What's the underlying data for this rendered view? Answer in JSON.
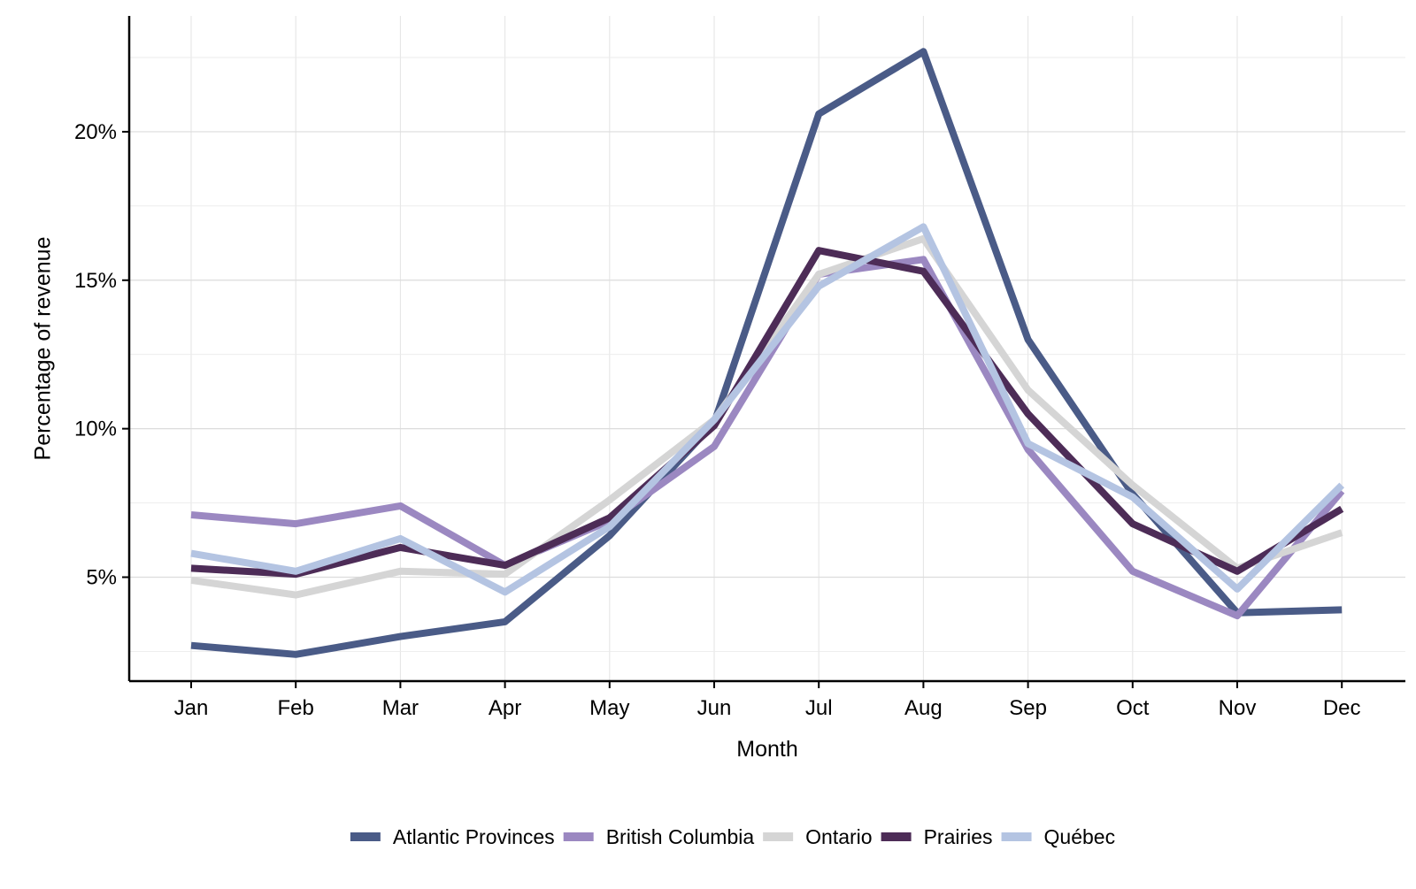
{
  "chart_data": {
    "type": "line",
    "title": "",
    "xlabel": "Month",
    "ylabel": "Percentage of revenue",
    "categories": [
      "Jan",
      "Feb",
      "Mar",
      "Apr",
      "May",
      "Jun",
      "Jul",
      "Aug",
      "Sep",
      "Oct",
      "Nov",
      "Dec"
    ],
    "ylim": [
      1.5,
      23.9
    ],
    "yticks": [
      5,
      10,
      15,
      20
    ],
    "ytick_labels": [
      "5%",
      "10%",
      "15%",
      "20%"
    ],
    "grid": true,
    "legend_position": "bottom",
    "series": [
      {
        "name": "Atlantic Provinces",
        "color": "#4a5b87",
        "values": [
          2.7,
          2.4,
          3.0,
          3.5,
          6.4,
          10.2,
          20.6,
          22.7,
          13.0,
          7.8,
          3.8,
          3.9
        ]
      },
      {
        "name": "British Columbia",
        "color": "#9b88c1",
        "values": [
          7.1,
          6.8,
          7.4,
          5.4,
          6.9,
          9.4,
          15.2,
          15.7,
          9.3,
          5.2,
          3.7,
          7.9
        ]
      },
      {
        "name": "Ontario",
        "color": "#d5d5d5",
        "values": [
          4.9,
          4.4,
          5.2,
          5.1,
          7.6,
          10.3,
          15.2,
          16.4,
          11.3,
          8.1,
          5.3,
          6.5
        ]
      },
      {
        "name": "Prairies",
        "color": "#4d2c57",
        "values": [
          5.3,
          5.1,
          6.0,
          5.4,
          7.0,
          10.1,
          16.0,
          15.3,
          10.5,
          6.8,
          5.2,
          7.3
        ]
      },
      {
        "name": "Québec",
        "color": "#b4c4e2",
        "values": [
          5.8,
          5.2,
          6.3,
          4.5,
          6.7,
          10.3,
          14.8,
          16.8,
          9.5,
          7.7,
          4.6,
          8.1
        ]
      }
    ]
  }
}
